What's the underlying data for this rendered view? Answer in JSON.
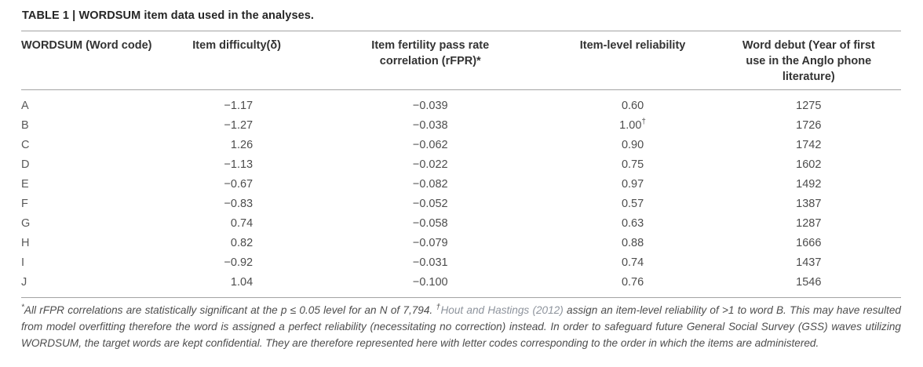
{
  "title": "TABLE 1 | WORDSUM item data used in the analyses.",
  "table": {
    "columns": [
      {
        "id": "code",
        "lines": [
          "WORDSUM (Word code)"
        ]
      },
      {
        "id": "difficulty",
        "lines": [
          "Item difficulty(δ)"
        ]
      },
      {
        "id": "rfpr",
        "lines": [
          "Item fertility pass rate",
          "correlation (rFPR)*"
        ]
      },
      {
        "id": "reliability",
        "lines": [
          "Item-level reliability"
        ]
      },
      {
        "id": "debut",
        "lines": [
          "Word debut (Year of first",
          "use in the Anglo phone",
          "literature)"
        ]
      }
    ],
    "rows": [
      {
        "code": "A",
        "difficulty": "−1.17",
        "rfpr": "−0.039",
        "reliability": "0.60",
        "reliability_sup": "",
        "year": "1275"
      },
      {
        "code": "B",
        "difficulty": "−1.27",
        "rfpr": "−0.038",
        "reliability": "1.00",
        "reliability_sup": "†",
        "year": "1726"
      },
      {
        "code": "C",
        "difficulty": "1.26",
        "rfpr": "−0.062",
        "reliability": "0.90",
        "reliability_sup": "",
        "year": "1742"
      },
      {
        "code": "D",
        "difficulty": "−1.13",
        "rfpr": "−0.022",
        "reliability": "0.75",
        "reliability_sup": "",
        "year": "1602"
      },
      {
        "code": "E",
        "difficulty": "−0.67",
        "rfpr": "−0.082",
        "reliability": "0.97",
        "reliability_sup": "",
        "year": "1492"
      },
      {
        "code": "F",
        "difficulty": "−0.83",
        "rfpr": "−0.052",
        "reliability": "0.57",
        "reliability_sup": "",
        "year": "1387"
      },
      {
        "code": "G",
        "difficulty": "0.74",
        "rfpr": "−0.058",
        "reliability": "0.63",
        "reliability_sup": "",
        "year": "1287"
      },
      {
        "code": "H",
        "difficulty": "0.82",
        "rfpr": "−0.079",
        "reliability": "0.88",
        "reliability_sup": "",
        "year": "1666"
      },
      {
        "code": "I",
        "difficulty": "−0.92",
        "rfpr": "−0.031",
        "reliability": "0.74",
        "reliability_sup": "",
        "year": "1437"
      },
      {
        "code": "J",
        "difficulty": "1.04",
        "rfpr": "−0.100",
        "reliability": "0.76",
        "reliability_sup": "",
        "year": "1546"
      }
    ]
  },
  "footnote": {
    "segments": [
      {
        "style": "sup",
        "text": "*"
      },
      {
        "style": "normal",
        "text": "All rFPR correlations are statistically significant at the p ≤ 0.05 level for an N of 7,794. "
      },
      {
        "style": "sup",
        "text": "†"
      },
      {
        "style": "cite",
        "text": "Hout and Hastings (2012)"
      },
      {
        "style": "normal",
        "text": " assign an item-level reliability of >1 to word B. This may have resulted from model overfitting therefore the word is assigned a perfect reliability (necessitating no correction) instead. In order to safeguard future General Social Survey (GSS) waves utilizing WORDSUM, the target words are kept confidential. They are therefore represented here with letter codes corresponding to the order in which the items are administered."
      }
    ]
  }
}
